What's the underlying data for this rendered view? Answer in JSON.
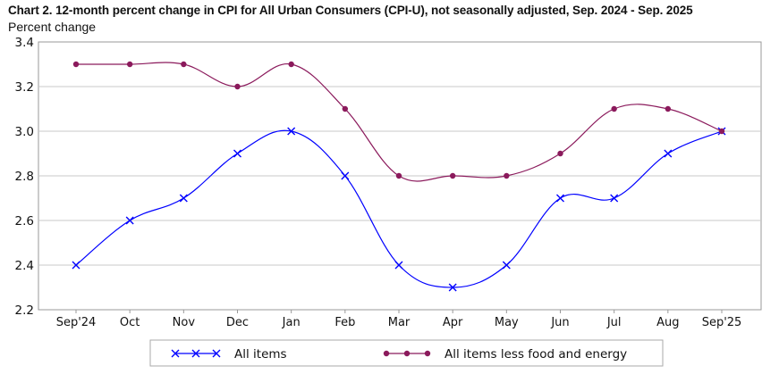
{
  "chart_data": {
    "type": "line",
    "title": "Chart 2. 12-month percent change in CPI for All Urban Consumers (CPI-U), not seasonally adjusted, Sep. 2024 - Sep. 2025",
    "ylabel": "Percent change",
    "xlabel": "",
    "categories": [
      "Sep'24",
      "Oct",
      "Nov",
      "Dec",
      "Jan",
      "Feb",
      "Mar",
      "Apr",
      "May",
      "Jun",
      "Jul",
      "Aug",
      "Sep'25"
    ],
    "ylim": [
      2.2,
      3.4
    ],
    "yticks": [
      "2.2",
      "2.4",
      "2.6",
      "2.8",
      "3.0",
      "3.2",
      "3.4"
    ],
    "grid": true,
    "legend": "bottom",
    "series": [
      {
        "name": "All items",
        "color": "#0000ff",
        "marker": "x",
        "values": [
          2.4,
          2.6,
          2.7,
          2.9,
          3.0,
          2.8,
          2.4,
          2.3,
          2.4,
          2.7,
          2.7,
          2.9,
          3.0
        ]
      },
      {
        "name": "All items less food and energy",
        "color": "#8b1a5c",
        "marker": "circle",
        "values": [
          3.3,
          3.3,
          3.3,
          3.2,
          3.3,
          3.1,
          2.8,
          2.8,
          2.8,
          2.9,
          3.1,
          3.1,
          3.0
        ]
      }
    ]
  }
}
